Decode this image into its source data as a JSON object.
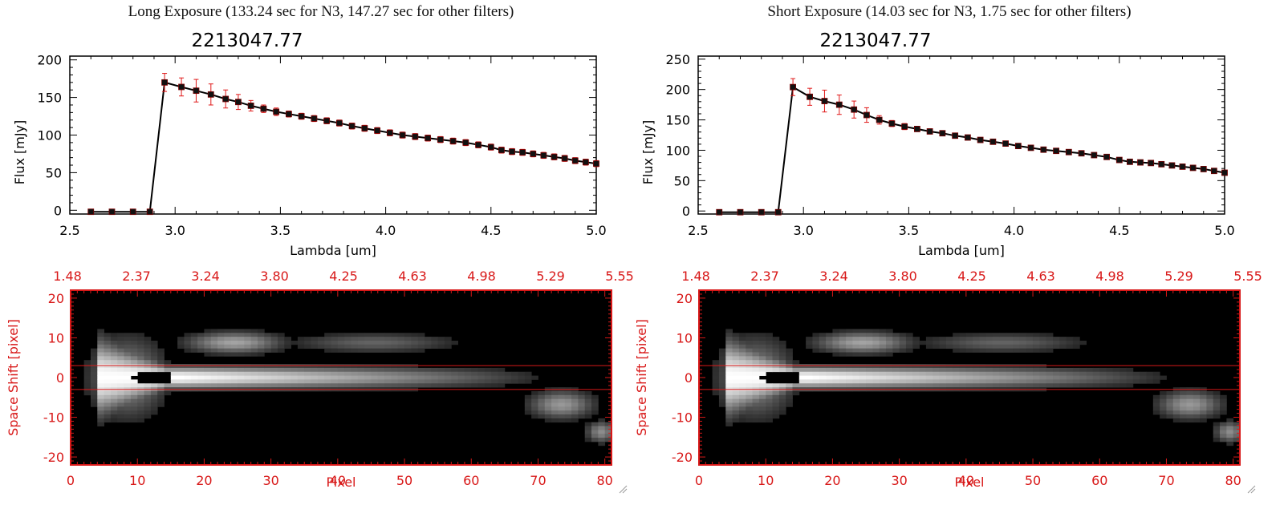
{
  "panels": [
    {
      "id": "long",
      "header": "Long Exposure (133.24 sec for N3, 147.27 sec for other filters)",
      "spectrum": {
        "title": "2213047.77",
        "xlabel": "Lambda [um]",
        "ylabel": "Flux [mJy]",
        "xlim": [
          2.5,
          5.0
        ],
        "ylim": [
          -5,
          205
        ],
        "xticks": [
          "2.5",
          "3.0",
          "3.5",
          "4.0",
          "4.5",
          "5.0"
        ],
        "yticks": [
          "0",
          "50",
          "100",
          "150",
          "200"
        ]
      },
      "image": {
        "xlabel": "Pixel",
        "ylabel": "Space Shift [pixel]",
        "xticks": [
          "0",
          "10",
          "20",
          "30",
          "40",
          "50",
          "60",
          "70",
          "80"
        ],
        "yticks": [
          "20",
          "10",
          "0",
          "-10",
          "-20"
        ],
        "top_ticks": [
          "1.48",
          "2.37",
          "3.24",
          "3.80",
          "4.25",
          "4.63",
          "4.98",
          "5.29",
          "5.55"
        ]
      }
    },
    {
      "id": "short",
      "header": "Short Exposure (14.03 sec for N3, 1.75 sec for other filters)",
      "spectrum": {
        "title": "2213047.77",
        "xlabel": "Lambda [um]",
        "ylabel": "Flux [mJy]",
        "xlim": [
          2.5,
          5.0
        ],
        "ylim": [
          -5,
          255
        ],
        "xticks": [
          "2.5",
          "3.0",
          "3.5",
          "4.0",
          "4.5",
          "5.0"
        ],
        "yticks": [
          "0",
          "50",
          "100",
          "150",
          "200",
          "250"
        ]
      },
      "image": {
        "xlabel": "Pixel",
        "ylabel": "Space Shift [pixel]",
        "xticks": [
          "0",
          "10",
          "20",
          "30",
          "40",
          "50",
          "60",
          "70",
          "80"
        ],
        "yticks": [
          "20",
          "10",
          "0",
          "-10",
          "-20"
        ],
        "top_ticks": [
          "1.48",
          "2.37",
          "3.24",
          "3.80",
          "4.25",
          "4.63",
          "4.98",
          "5.29",
          "5.55"
        ]
      }
    }
  ],
  "chart_data": [
    {
      "type": "line",
      "title": "2213047.77",
      "xlabel": "Lambda [um]",
      "ylabel": "Flux [mJy]",
      "xlim": [
        2.5,
        5.0
      ],
      "ylim": [
        -5,
        205
      ],
      "series": [
        {
          "name": "Long Exposure",
          "x": [
            2.6,
            2.7,
            2.8,
            2.88,
            2.95,
            3.03,
            3.1,
            3.17,
            3.24,
            3.3,
            3.36,
            3.42,
            3.48,
            3.54,
            3.6,
            3.66,
            3.72,
            3.78,
            3.84,
            3.9,
            3.96,
            4.02,
            4.08,
            4.14,
            4.2,
            4.26,
            4.32,
            4.38,
            4.44,
            4.5,
            4.55,
            4.6,
            4.65,
            4.7,
            4.75,
            4.8,
            4.85,
            4.9,
            4.95,
            5.0
          ],
          "values": [
            -2,
            -2,
            -2,
            -2,
            170,
            164,
            159,
            154,
            148,
            144,
            139,
            135,
            131,
            128,
            125,
            122,
            119,
            116,
            112,
            109,
            106,
            103,
            100,
            98,
            96,
            94,
            92,
            90,
            87,
            84,
            80,
            78,
            77,
            75,
            73,
            71,
            69,
            66,
            64,
            62
          ],
          "errors": [
            0,
            0,
            0,
            0,
            12,
            12,
            15,
            14,
            12,
            10,
            7,
            5,
            5,
            4,
            4,
            4,
            4,
            4,
            4,
            4,
            4,
            4,
            4,
            4,
            4,
            4,
            4,
            4,
            4,
            4,
            4,
            4,
            4,
            4,
            4,
            4,
            4,
            4,
            4,
            4
          ]
        }
      ]
    },
    {
      "type": "line",
      "title": "2213047.77",
      "xlabel": "Lambda [um]",
      "ylabel": "Flux [mJy]",
      "xlim": [
        2.5,
        5.0
      ],
      "ylim": [
        -5,
        255
      ],
      "series": [
        {
          "name": "Short Exposure",
          "x": [
            2.6,
            2.7,
            2.8,
            2.88,
            2.95,
            3.03,
            3.1,
            3.17,
            3.24,
            3.3,
            3.36,
            3.42,
            3.48,
            3.54,
            3.6,
            3.66,
            3.72,
            3.78,
            3.84,
            3.9,
            3.96,
            4.02,
            4.08,
            4.14,
            4.2,
            4.26,
            4.32,
            4.38,
            4.44,
            4.5,
            4.55,
            4.6,
            4.65,
            4.7,
            4.75,
            4.8,
            4.85,
            4.9,
            4.95,
            5.0
          ],
          "values": [
            -2,
            -2,
            -2,
            -2,
            204,
            188,
            181,
            175,
            167,
            158,
            150,
            144,
            139,
            135,
            131,
            128,
            124,
            121,
            117,
            114,
            111,
            107,
            104,
            101,
            99,
            97,
            95,
            92,
            89,
            84,
            81,
            80,
            79,
            77,
            75,
            73,
            71,
            69,
            66,
            63
          ],
          "errors": [
            0,
            0,
            0,
            0,
            14,
            14,
            18,
            16,
            14,
            12,
            7,
            5,
            5,
            4,
            4,
            4,
            4,
            4,
            4,
            4,
            4,
            4,
            4,
            4,
            4,
            4,
            4,
            4,
            4,
            4,
            4,
            4,
            4,
            4,
            4,
            4,
            4,
            4,
            4,
            4
          ]
        }
      ]
    }
  ],
  "colors": {
    "axis_red": "#d81818",
    "errorbar": "#e01818",
    "marker": "#111111",
    "line": "#000000"
  }
}
